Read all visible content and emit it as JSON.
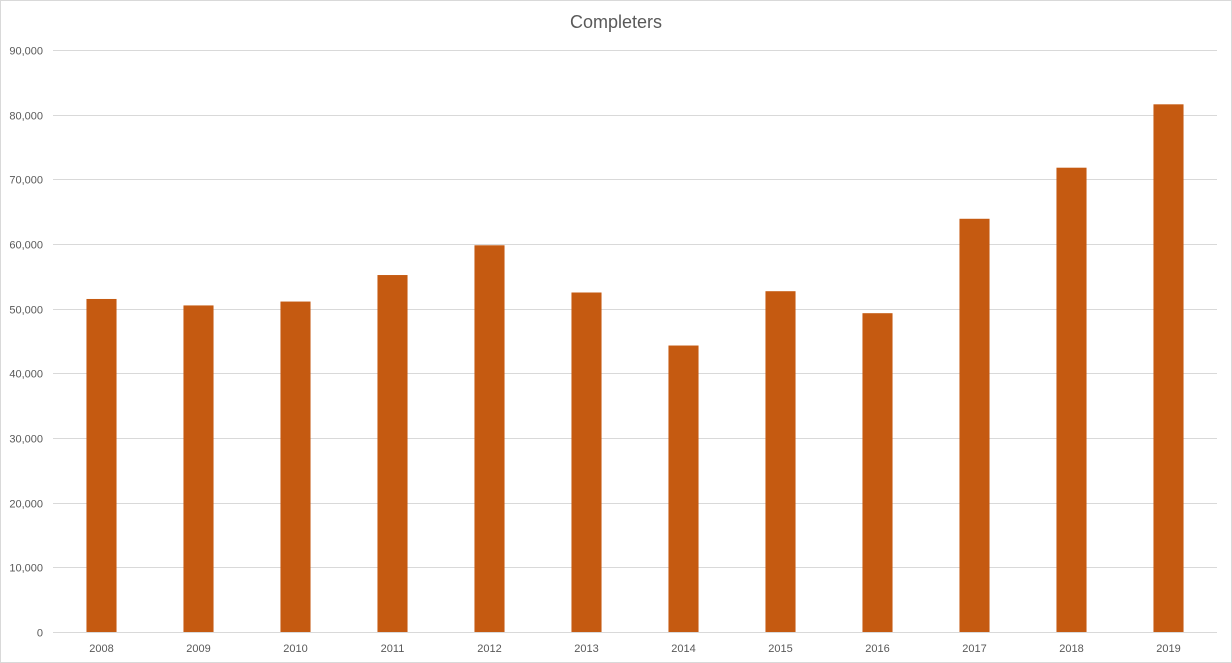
{
  "chart_data": {
    "type": "bar",
    "title": "Completers",
    "xlabel": "",
    "ylabel": "",
    "categories": [
      "2008",
      "2009",
      "2010",
      "2011",
      "2012",
      "2013",
      "2014",
      "2015",
      "2016",
      "2017",
      "2018",
      "2019"
    ],
    "series": [
      {
        "values": [
          51500,
          50500,
          51100,
          55200,
          59800,
          52500,
          44300,
          52700,
          49300,
          63900,
          71800,
          81600
        ],
        "color": "#c55a11"
      }
    ],
    "ylim": [
      0,
      90000
    ],
    "yticks": [
      0,
      10000,
      20000,
      30000,
      40000,
      50000,
      60000,
      70000,
      80000,
      90000
    ],
    "ytick_labels": [
      "0",
      "10,000",
      "20,000",
      "30,000",
      "40,000",
      "50,000",
      "60,000",
      "70,000",
      "80,000",
      "90,000"
    ],
    "grid": true,
    "gridline_color": "#d9d9d9",
    "legend": "none"
  }
}
